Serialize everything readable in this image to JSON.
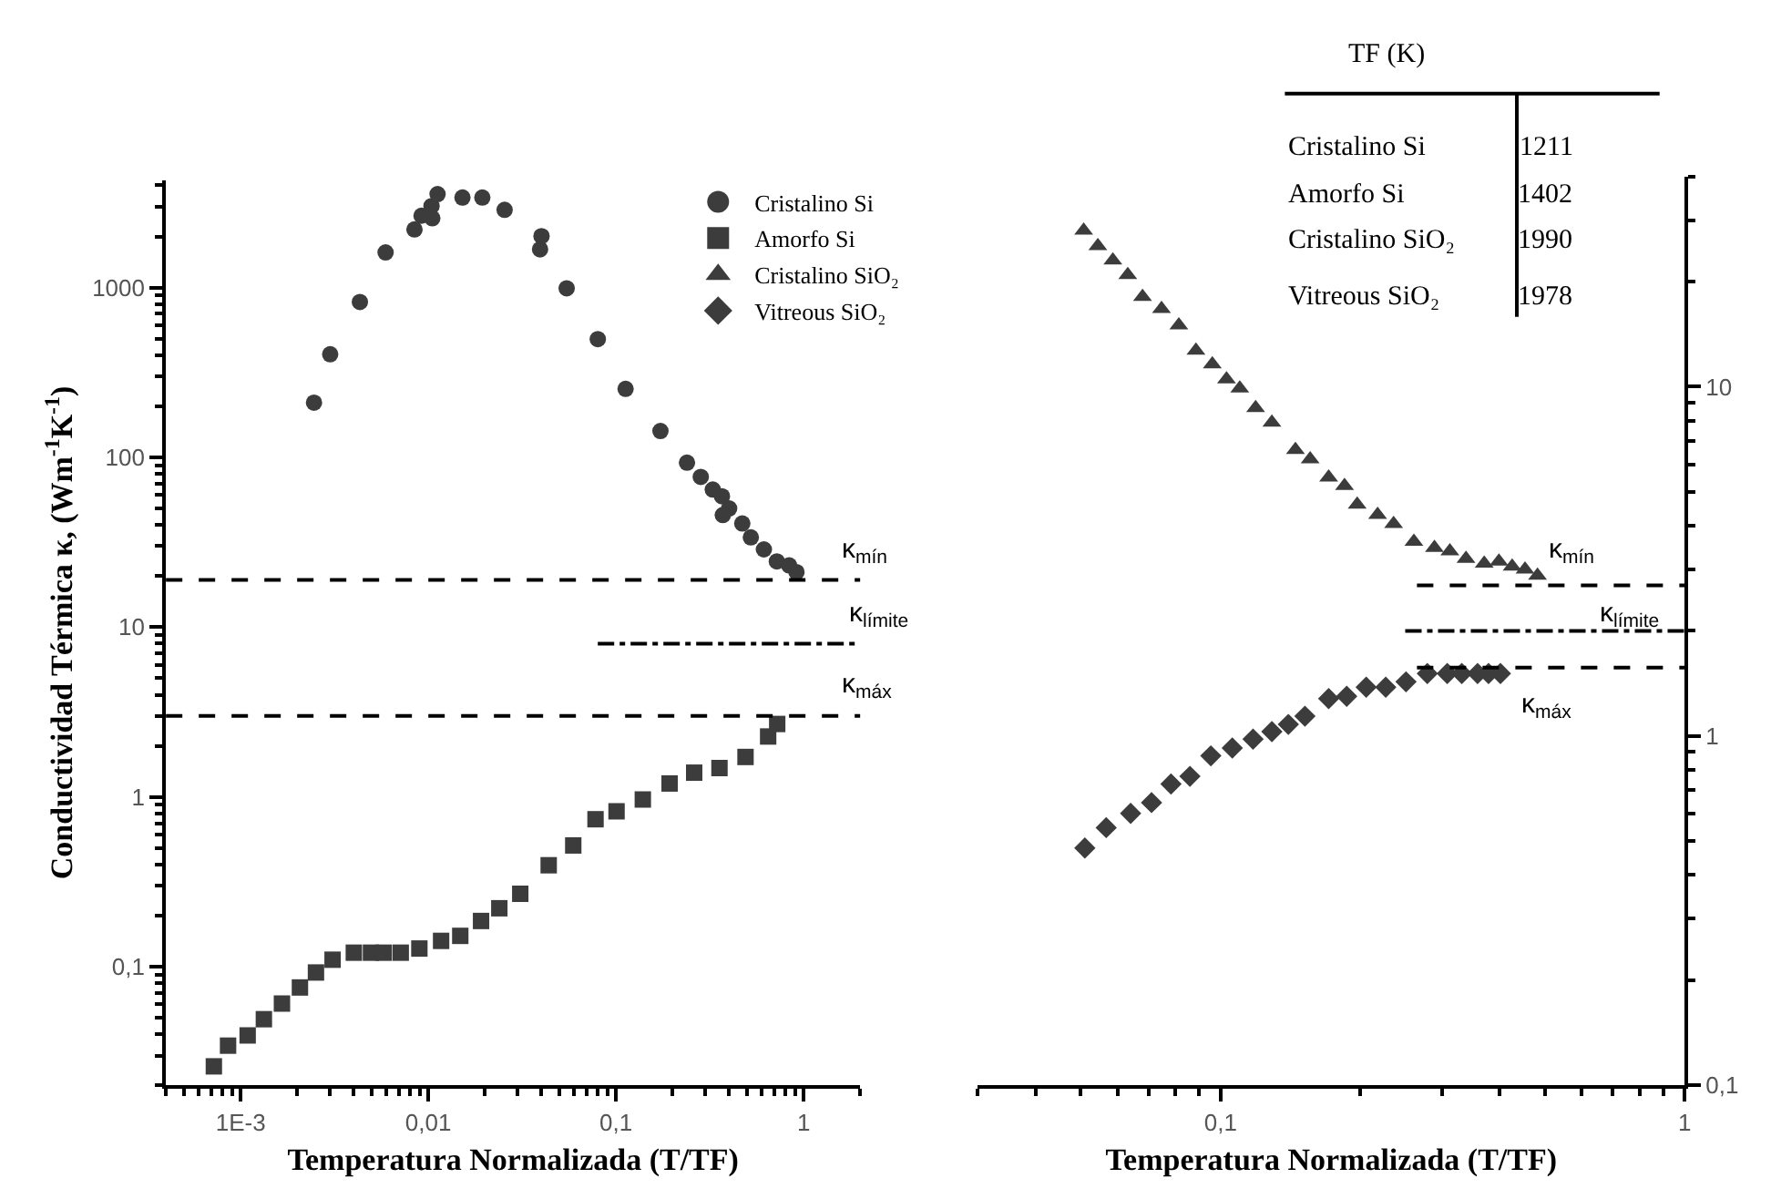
{
  "chart_data": [
    {
      "type": "scatter",
      "xlabel": "Temperatura Normalizada (T/TF)",
      "ylabel": "Conductividad Térmica κ, (Wm$^{-1}$K$^{-1}$)",
      "log": "xy",
      "legend": "top right",
      "xlim": [
        0.0004,
        2
      ],
      "ylim": [
        0.02,
        4300
      ],
      "xticks": [
        {
          "value": 0.001,
          "label": "1E-3"
        },
        {
          "value": 0.01,
          "label": "0,01"
        },
        {
          "value": 0.1,
          "label": "0,1"
        },
        1
      ],
      "yticks": [
        {
          "value": 0.1,
          "label": "0,1"
        },
        1,
        10,
        100,
        1000
      ],
      "series": [
        {
          "name": "Cristalino Si",
          "color": "#3c3c3c",
          "marker": "circle",
          "x": [
            0.00246,
            0.003,
            0.00432,
            0.00592,
            0.00844,
            0.0092,
            0.0105,
            0.0104,
            0.0112,
            0.0152,
            0.0194,
            0.0255,
            0.0401,
            0.0394,
            0.0546,
            0.08,
            0.1125,
            0.1726,
            0.239,
            0.283,
            0.328,
            0.367,
            0.401,
            0.371,
            0.471,
            0.523,
            0.614,
            0.72,
            0.837,
            0.916
          ],
          "values": [
            210,
            405,
            822,
            1610,
            2200,
            2650,
            2560,
            3020,
            3550,
            3390,
            3390,
            2870,
            2010,
            1680,
            990,
            497,
            253,
            143,
            93,
            76.7,
            64.6,
            59,
            50,
            45.7,
            40.8,
            33.8,
            28.7,
            24.4,
            23.1,
            21.1
          ]
        },
        {
          "name": "Amorfo Si",
          "color": "#3c3c3c",
          "marker": "square",
          "x": [
            0.00072,
            0.000857,
            0.00109,
            0.00133,
            0.00166,
            0.00207,
            0.00252,
            0.00309,
            0.00401,
            0.00495,
            0.00579,
            0.00713,
            0.00896,
            0.0117,
            0.0148,
            0.0191,
            0.0239,
            0.0309,
            0.0438,
            0.0592,
            0.0778,
            0.1007,
            0.139,
            0.193,
            0.261,
            0.356,
            0.49,
            0.647,
            0.723
          ],
          "values": [
            0.0259,
            0.0343,
            0.0394,
            0.0491,
            0.0607,
            0.0755,
            0.0925,
            0.11,
            0.121,
            0.121,
            0.121,
            0.121,
            0.128,
            0.142,
            0.152,
            0.186,
            0.221,
            0.269,
            0.396,
            0.518,
            0.739,
            0.823,
            0.966,
            1.2,
            1.39,
            1.48,
            1.72,
            2.27,
            2.69
          ]
        },
        {
          "type": "line",
          "color": "#000000",
          "line_style": "dashdot",
          "x": [
            0.08,
            2
          ],
          "values": [
            8,
            8
          ]
        }
      ],
      "ref_lines": [
        {
          "axis": "y",
          "value": 19,
          "color": "#000000",
          "line_style": "dashed"
        },
        {
          "axis": "y",
          "value": 3,
          "color": "#000000",
          "line_style": "dashed"
        }
      ],
      "annotations": [
        "κ$_{mín}$",
        "κ$_{límite}$",
        "κ$_{máx}$"
      ]
    },
    {
      "type": "scatter",
      "xlabel": "Temperatura Normalizada (T/TF)",
      "log": "xy",
      "legend": "top left",
      "xlim": [
        0.03,
        1
      ],
      "ylim": [
        0.1,
        40
      ],
      "xticks": [
        {
          "value": 0.1,
          "label": "0,1"
        },
        1
      ],
      "yticks": [
        {
          "value": 0.1,
          "label": "0,1"
        },
        1,
        10
      ],
      "series": [
        {
          "name": "Cristalino SiO₂",
          "color": "#3c3c3c",
          "marker": "triangle",
          "x": [
            0.0507,
            0.0544,
            0.0586,
            0.0631,
            0.0679,
            0.0746,
            0.0813,
            0.0885,
            0.096,
            0.103,
            0.11,
            0.119,
            0.129,
            0.145,
            0.156,
            0.171,
            0.185,
            0.197,
            0.218,
            0.236,
            0.261,
            0.289,
            0.312,
            0.338,
            0.37,
            0.398,
            0.425,
            0.453,
            0.482
          ],
          "values": [
            28,
            25.3,
            23.0,
            20.9,
            18.1,
            16.7,
            15.0,
            12.7,
            11.6,
            10.5,
            9.9,
            8.7,
            7.9,
            6.6,
            6.2,
            5.5,
            5.2,
            4.6,
            4.3,
            4.05,
            3.6,
            3.46,
            3.38,
            3.22,
            3.12,
            3.16,
            3.06,
            3.0,
            2.88
          ]
        },
        {
          "name": "Vitreous SiO₂",
          "color": "#3c3c3c",
          "marker": "diamond",
          "x": [
            0.051,
            0.0567,
            0.064,
            0.071,
            0.0782,
            0.0859,
            0.0953,
            0.106,
            0.1175,
            0.129,
            0.14,
            0.152,
            0.171,
            0.187,
            0.206,
            0.227,
            0.251,
            0.279,
            0.308,
            0.331,
            0.358,
            0.378,
            0.401
          ],
          "values": [
            0.478,
            0.547,
            0.601,
            0.645,
            0.729,
            0.767,
            0.878,
            0.924,
            0.98,
            1.03,
            1.08,
            1.14,
            1.28,
            1.3,
            1.38,
            1.38,
            1.43,
            1.51,
            1.51,
            1.51,
            1.51,
            1.51,
            1.51
          ]
        },
        {
          "type": "line",
          "color": "#000000",
          "line_style": "dashed",
          "x": [
            0.265,
            1
          ],
          "values": [
            2.7,
            2.7
          ]
        },
        {
          "type": "line",
          "color": "#000000",
          "line_style": "dashdot",
          "x": [
            0.25,
            1
          ],
          "values": [
            2.0,
            2.0
          ]
        },
        {
          "type": "line",
          "color": "#000000",
          "line_style": "dashed",
          "x": [
            0.265,
            1
          ],
          "values": [
            1.57,
            1.57
          ]
        }
      ],
      "annotations": [
        "TF (K)",
        "Cristalino Si",
        "1211",
        "Amorfo Si",
        "1402",
        "Cristalino SiO₂",
        "1990",
        "Vitreous SiO₂",
        "1978",
        "κ$_{mín}$",
        "κ$_{límite}$",
        "κ$_{máx}$"
      ]
    }
  ]
}
